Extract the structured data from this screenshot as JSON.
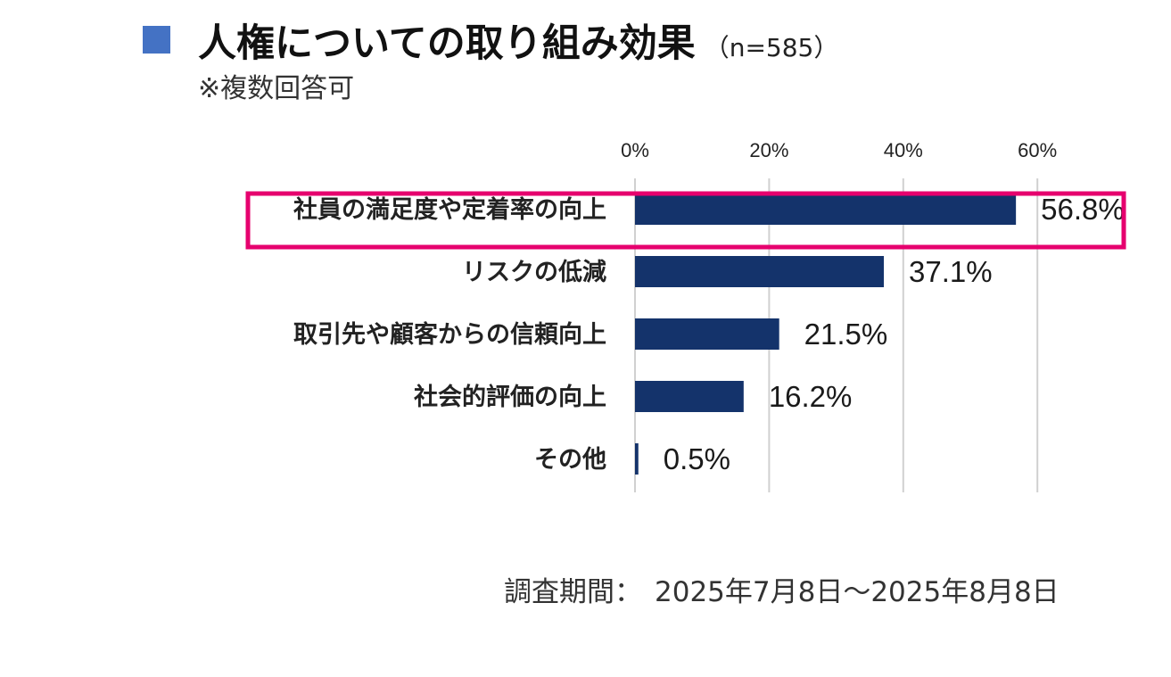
{
  "header": {
    "title": "人権についての取り組み効果",
    "sample_size": "（n=585）",
    "note": "※複数回答可",
    "accent_color": "#4472c4"
  },
  "chart_data": {
    "type": "bar",
    "orientation": "horizontal",
    "categories": [
      "社員の満足度や定着率の向上",
      "リスクの低減",
      "取引先や顧客からの信頼向上",
      "社会的評価の向上",
      "その他"
    ],
    "values": [
      56.8,
      37.1,
      21.5,
      16.2,
      0.5
    ],
    "value_labels": [
      "56.8%",
      "37.1%",
      "21.5%",
      "16.2%",
      "0.5%"
    ],
    "x_ticks": [
      0,
      20,
      40,
      60
    ],
    "x_tick_labels": [
      "0%",
      "20%",
      "40%",
      "60%"
    ],
    "xlim": [
      0,
      60
    ],
    "x_axis_position": "top",
    "grid": true,
    "bar_color": "#14336b",
    "grid_color": "#d0d0d0",
    "highlight": {
      "category_index": 0,
      "color": "#e6006e"
    }
  },
  "footer": {
    "period_label": "調査期間：",
    "period_value": "2025年7月8日～2025年8月8日"
  }
}
